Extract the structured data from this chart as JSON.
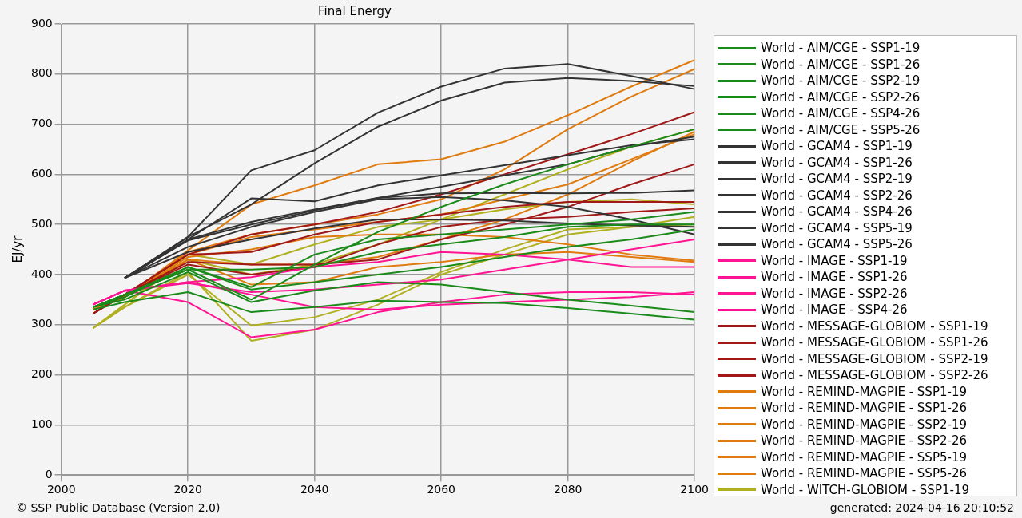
{
  "chart_data": {
    "type": "line",
    "title": "Final Energy",
    "ylabel": "EJ/yr",
    "x": [
      2005,
      2010,
      2020,
      2030,
      2040,
      2050,
      2060,
      2070,
      2080,
      2090,
      2100
    ],
    "xlim": [
      2000,
      2100
    ],
    "xticks": [
      2000,
      2020,
      2040,
      2060,
      2080,
      2100
    ],
    "ylim": [
      0,
      900
    ],
    "yticks": [
      0,
      100,
      200,
      300,
      400,
      500,
      600,
      700,
      800,
      900
    ],
    "grid": true,
    "legend": "right",
    "marker": "none",
    "line_style": "solid",
    "annotations": [
      "© SSP Public Database (Version 2.0)",
      "generated: 2024-04-16 20:10:52"
    ],
    "series": [
      {
        "name": "World - AIM/CGE - SSP1-19",
        "color": "#1a8a1a",
        "values": [
          335,
          360,
          410,
          350,
          420,
          485,
          535,
          580,
          620,
          655,
          690
        ]
      },
      {
        "name": "World - AIM/CGE - SSP1-26",
        "color": "#1a8a1a",
        "values": [
          335,
          360,
          415,
          375,
          440,
          470,
          480,
          490,
          500,
          510,
          525
        ]
      },
      {
        "name": "World - AIM/CGE - SSP2-19",
        "color": "#1a8a1a",
        "values": [
          335,
          360,
          410,
          410,
          415,
          445,
          460,
          475,
          495,
          500,
          500
        ]
      },
      {
        "name": "World - AIM/CGE - SSP2-26",
        "color": "#1a8a1a",
        "values": [
          335,
          355,
          415,
          370,
          385,
          400,
          415,
          435,
          455,
          470,
          490
        ]
      },
      {
        "name": "World - AIM/CGE - SSP4-26",
        "color": "#1a8a1a",
        "values": [
          335,
          350,
          405,
          345,
          368,
          385,
          380,
          365,
          350,
          338,
          325
        ]
      },
      {
        "name": "World - AIM/CGE - SSP5-26",
        "color": "#1a8a1a",
        "values": [
          330,
          345,
          365,
          325,
          335,
          348,
          345,
          343,
          333,
          322,
          310
        ]
      },
      {
        "name": "World - GCAM4 - SSP1-19",
        "color": "#333333",
        "values": [
          null,
          393,
          475,
          608,
          648,
          723,
          775,
          811,
          820,
          796,
          770
        ]
      },
      {
        "name": "World - GCAM4 - SSP1-26",
        "color": "#333333",
        "values": [
          null,
          393,
          475,
          540,
          622,
          695,
          747,
          783,
          792,
          786,
          776
        ]
      },
      {
        "name": "World - GCAM4 - SSP2-19",
        "color": "#333333",
        "values": [
          null,
          393,
          470,
          552,
          546,
          578,
          598,
          618,
          638,
          658,
          670
        ]
      },
      {
        "name": "World - GCAM4 - SSP2-26",
        "color": "#333333",
        "values": [
          null,
          393,
          470,
          505,
          530,
          553,
          575,
          598,
          620,
          655,
          675
        ]
      },
      {
        "name": "World - GCAM4 - SSP4-26",
        "color": "#333333",
        "values": [
          null,
          393,
          468,
          500,
          528,
          553,
          562,
          563,
          562,
          563,
          568
        ]
      },
      {
        "name": "World - GCAM4 - SSP5-19",
        "color": "#333333",
        "values": [
          null,
          393,
          455,
          495,
          525,
          550,
          555,
          548,
          535,
          510,
          480
        ]
      },
      {
        "name": "World - GCAM4 - SSP5-26",
        "color": "#333333",
        "values": [
          null,
          393,
          445,
          470,
          492,
          510,
          510,
          508,
          502,
          498,
          495
        ]
      },
      {
        "name": "World - IMAGE - SSP1-19",
        "color": "#ff1493",
        "values": [
          340,
          368,
          385,
          395,
          415,
          425,
          445,
          440,
          430,
          415,
          415
        ]
      },
      {
        "name": "World - IMAGE - SSP1-26",
        "color": "#ff1493",
        "values": [
          340,
          368,
          383,
          365,
          370,
          380,
          390,
          410,
          430,
          450,
          470
        ]
      },
      {
        "name": "World - IMAGE - SSP2-26",
        "color": "#ff1493",
        "values": [
          340,
          368,
          345,
          275,
          290,
          325,
          345,
          360,
          365,
          365,
          360
        ]
      },
      {
        "name": "World - IMAGE - SSP4-26",
        "color": "#ff1493",
        "values": [
          340,
          368,
          385,
          360,
          335,
          330,
          340,
          345,
          350,
          355,
          365
        ]
      },
      {
        "name": "World - MESSAGE-GLOBIOM - SSP1-19",
        "color": "#a01818",
        "values": [
          322,
          360,
          440,
          480,
          500,
          525,
          560,
          600,
          640,
          680,
          724
        ]
      },
      {
        "name": "World - MESSAGE-GLOBIOM - SSP1-26",
        "color": "#a01818",
        "values": [
          322,
          360,
          440,
          445,
          480,
          505,
          520,
          535,
          545,
          545,
          545
        ]
      },
      {
        "name": "World - MESSAGE-GLOBIOM - SSP2-19",
        "color": "#a01818",
        "values": [
          322,
          360,
          425,
          420,
          420,
          430,
          470,
          500,
          535,
          580,
          620
        ]
      },
      {
        "name": "World - MESSAGE-GLOBIOM - SSP2-26",
        "color": "#a01818",
        "values": [
          322,
          360,
          420,
          400,
          415,
          460,
          495,
          510,
          515,
          525,
          532
        ]
      },
      {
        "name": "World - REMIND-MAGPIE - SSP1-19",
        "color": "#e07b10",
        "values": [
          330,
          355,
          448,
          540,
          578,
          620,
          630,
          665,
          718,
          775,
          828
        ]
      },
      {
        "name": "World - REMIND-MAGPIE - SSP1-26",
        "color": "#e07b10",
        "values": [
          330,
          355,
          445,
          480,
          500,
          520,
          550,
          610,
          690,
          755,
          810
        ]
      },
      {
        "name": "World - REMIND-MAGPIE - SSP2-19",
        "color": "#e07b10",
        "values": [
          330,
          355,
          440,
          475,
          490,
          505,
          520,
          550,
          580,
          630,
          680
        ]
      },
      {
        "name": "World - REMIND-MAGPIE - SSP2-26",
        "color": "#e07b10",
        "values": [
          330,
          355,
          430,
          420,
          420,
          435,
          470,
          510,
          560,
          625,
          685
        ]
      },
      {
        "name": "World - REMIND-MAGPIE - SSP5-19",
        "color": "#e07b10",
        "values": [
          330,
          355,
          435,
          450,
          475,
          480,
          480,
          475,
          460,
          440,
          428
        ]
      },
      {
        "name": "World - REMIND-MAGPIE - SSP5-26",
        "color": "#e07b10",
        "values": [
          330,
          355,
          430,
          380,
          385,
          415,
          425,
          440,
          445,
          435,
          425
        ]
      },
      {
        "name": "World - WITCH-GLOBIOM - SSP1-19",
        "color": "#b0b020",
        "values": [
          293,
          335,
          400,
          298,
          315,
          350,
          405,
          450,
          490,
          495,
          500
        ]
      },
      {
        "color": "#b0b020",
        "values": [
          293,
          335,
          405,
          268,
          290,
          340,
          400,
          440,
          480,
          495,
          515
        ]
      },
      {
        "color": "#b0b020",
        "values": [
          293,
          340,
          430,
          400,
          420,
          460,
          510,
          560,
          610,
          655,
          690
        ]
      },
      {
        "color": "#b0b020",
        "values": [
          293,
          340,
          440,
          420,
          460,
          495,
          510,
          530,
          545,
          550,
          540
        ]
      }
    ]
  }
}
